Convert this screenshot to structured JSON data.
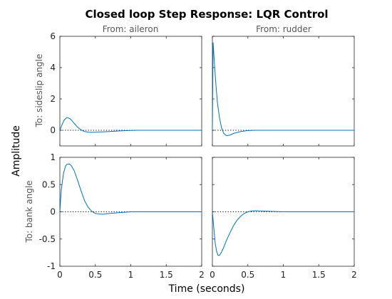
{
  "chart_data": {
    "type": "line",
    "title": "Closed loop Step Response: LQR Control",
    "xlabel": "Time (seconds)",
    "ylabel": "Amplitude",
    "xlim": [
      0,
      2
    ],
    "xticks": [
      "0",
      "0.5",
      "1",
      "1.5",
      "2"
    ],
    "column_labels": [
      "From: aileron",
      "From: rudder"
    ],
    "row_labels": [
      "To: sideslip angle",
      "To: bank angle"
    ],
    "rows": [
      {
        "ylim": [
          -1,
          6
        ],
        "yticks": [
          "0",
          "2",
          "4",
          "6"
        ]
      },
      {
        "ylim": [
          -1,
          1
        ],
        "yticks": [
          "-1",
          "-0.5",
          "0",
          "0.5",
          "1"
        ]
      }
    ],
    "line_color": "#0072BD",
    "grid": false,
    "panels": [
      {
        "from": "aileron",
        "to": "sideslip angle",
        "x": [
          0,
          0.03,
          0.06,
          0.1,
          0.15,
          0.2,
          0.25,
          0.3,
          0.35,
          0.4,
          0.45,
          0.5,
          0.6,
          0.7,
          0.8,
          0.9,
          1.0,
          1.1,
          1.5,
          2.0
        ],
        "y": [
          0,
          0.35,
          0.65,
          0.82,
          0.72,
          0.45,
          0.2,
          0.02,
          -0.08,
          -0.12,
          -0.13,
          -0.12,
          -0.1,
          -0.08,
          -0.05,
          -0.03,
          -0.01,
          0,
          0,
          0
        ]
      },
      {
        "from": "rudder",
        "to": "sideslip angle",
        "x": [
          0,
          0.01,
          0.03,
          0.05,
          0.07,
          0.1,
          0.13,
          0.16,
          0.2,
          0.25,
          0.3,
          0.4,
          0.5,
          0.6,
          0.8,
          1.0,
          1.5,
          2.0
        ],
        "y": [
          0,
          5.6,
          4.2,
          2.9,
          1.8,
          0.8,
          0.15,
          -0.2,
          -0.35,
          -0.3,
          -0.2,
          -0.08,
          -0.02,
          0,
          0,
          0,
          0,
          0
        ]
      },
      {
        "from": "aileron",
        "to": "bank angle",
        "x": [
          0,
          0.02,
          0.05,
          0.08,
          0.1,
          0.13,
          0.16,
          0.2,
          0.25,
          0.3,
          0.35,
          0.4,
          0.45,
          0.5,
          0.55,
          0.6,
          0.7,
          0.8,
          0.9,
          1.0,
          1.2,
          1.5,
          2.0
        ],
        "y": [
          0,
          0.4,
          0.7,
          0.84,
          0.87,
          0.88,
          0.85,
          0.76,
          0.58,
          0.38,
          0.2,
          0.08,
          0.01,
          -0.03,
          -0.04,
          -0.045,
          -0.03,
          -0.02,
          -0.01,
          0,
          0,
          0,
          0
        ]
      },
      {
        "from": "rudder",
        "to": "bank angle",
        "x": [
          0,
          0.02,
          0.04,
          0.06,
          0.08,
          0.1,
          0.12,
          0.15,
          0.2,
          0.25,
          0.3,
          0.35,
          0.4,
          0.45,
          0.5,
          0.55,
          0.6,
          0.7,
          0.8,
          1.0,
          1.5,
          2.0
        ],
        "y": [
          0,
          -0.3,
          -0.58,
          -0.73,
          -0.8,
          -0.8,
          -0.76,
          -0.68,
          -0.52,
          -0.38,
          -0.25,
          -0.15,
          -0.08,
          -0.03,
          0,
          0.015,
          0.02,
          0.015,
          0.01,
          0,
          0,
          0
        ]
      }
    ]
  }
}
